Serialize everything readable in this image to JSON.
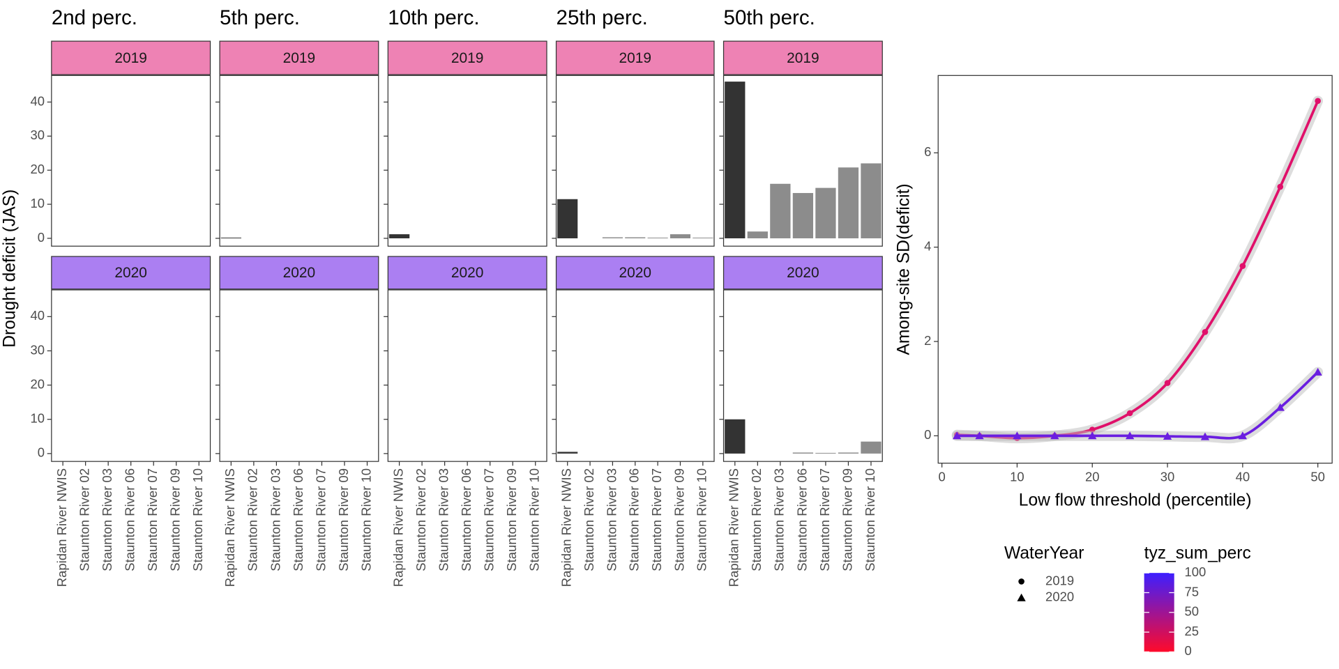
{
  "chart_data": [
    {
      "type": "bar",
      "y_label": "Drought deficit (JAS)",
      "columns": [
        "2nd perc.",
        "5th perc.",
        "10th perc.",
        "25th perc.",
        "50th perc."
      ],
      "categories": [
        "Rapidan River NWIS",
        "Staunton River 02",
        "Staunton River 03",
        "Staunton River 06",
        "Staunton River 07",
        "Staunton River 09",
        "Staunton River 10"
      ],
      "bar_colors": [
        "#333333",
        "#8c8c8c",
        "#8c8c8c",
        "#8c8c8c",
        "#8c8c8c",
        "#8c8c8c",
        "#8c8c8c"
      ],
      "ylim": [
        -2.3,
        47.8
      ],
      "yticks": [
        0,
        10,
        20,
        30,
        40
      ],
      "rows": [
        {
          "strip": "2019",
          "color": "#ee82b4",
          "values": [
            [
              0,
              0,
              0,
              0,
              0,
              0,
              0
            ],
            [
              0.2,
              0,
              0,
              0,
              0,
              0,
              0
            ],
            [
              1.2,
              0,
              0,
              0,
              0,
              0,
              0
            ],
            [
              11.5,
              0,
              0.3,
              0.3,
              0.2,
              1.2,
              0.2
            ],
            [
              46,
              2,
              16,
              13.3,
              14.8,
              20.8,
              22
            ]
          ]
        },
        {
          "strip": "2020",
          "color": "#ab7ff2",
          "values": [
            [
              0,
              0,
              0,
              0,
              0,
              0,
              0
            ],
            [
              0,
              0,
              0,
              0,
              0,
              0,
              0
            ],
            [
              0,
              0,
              0,
              0,
              0,
              0,
              0
            ],
            [
              0.5,
              0,
              0,
              0,
              0,
              0,
              0
            ],
            [
              10,
              0,
              0,
              0.3,
              0.2,
              0.3,
              3.5
            ]
          ]
        }
      ]
    },
    {
      "type": "scatter",
      "x_label": "Low flow threshold (percentile)",
      "y_label": "Among-site SD(deficit)",
      "x": [
        2,
        5,
        10,
        15,
        20,
        25,
        30,
        35,
        40,
        45,
        50
      ],
      "xlim": [
        -0.5,
        51.9
      ],
      "xticks": [
        0,
        10,
        20,
        30,
        40,
        50
      ],
      "ylim": [
        -0.58,
        7.64
      ],
      "yticks": [
        0,
        2,
        4,
        6
      ],
      "legend_title": "WaterYear",
      "series": [
        {
          "name": "2019",
          "shape": "circle",
          "color": "#e0106a",
          "values": [
            0.02,
            0,
            -0.05,
            0,
            0.13,
            0.48,
            1.12,
            2.2,
            3.6,
            5.28,
            7.1
          ]
        },
        {
          "name": "2020",
          "shape": "triangle",
          "color": "#6a1ee0",
          "values": [
            0,
            0,
            0,
            0,
            0,
            0,
            -0.01,
            -0.02,
            0,
            0.6,
            1.35
          ]
        }
      ],
      "colorbar": {
        "title": "tyz_sum_perc",
        "lim": [
          0,
          100
        ],
        "ticks": [
          0,
          25,
          50,
          75,
          100
        ],
        "colors": [
          "#ff0a2a",
          "#3d1fff"
        ]
      }
    }
  ]
}
